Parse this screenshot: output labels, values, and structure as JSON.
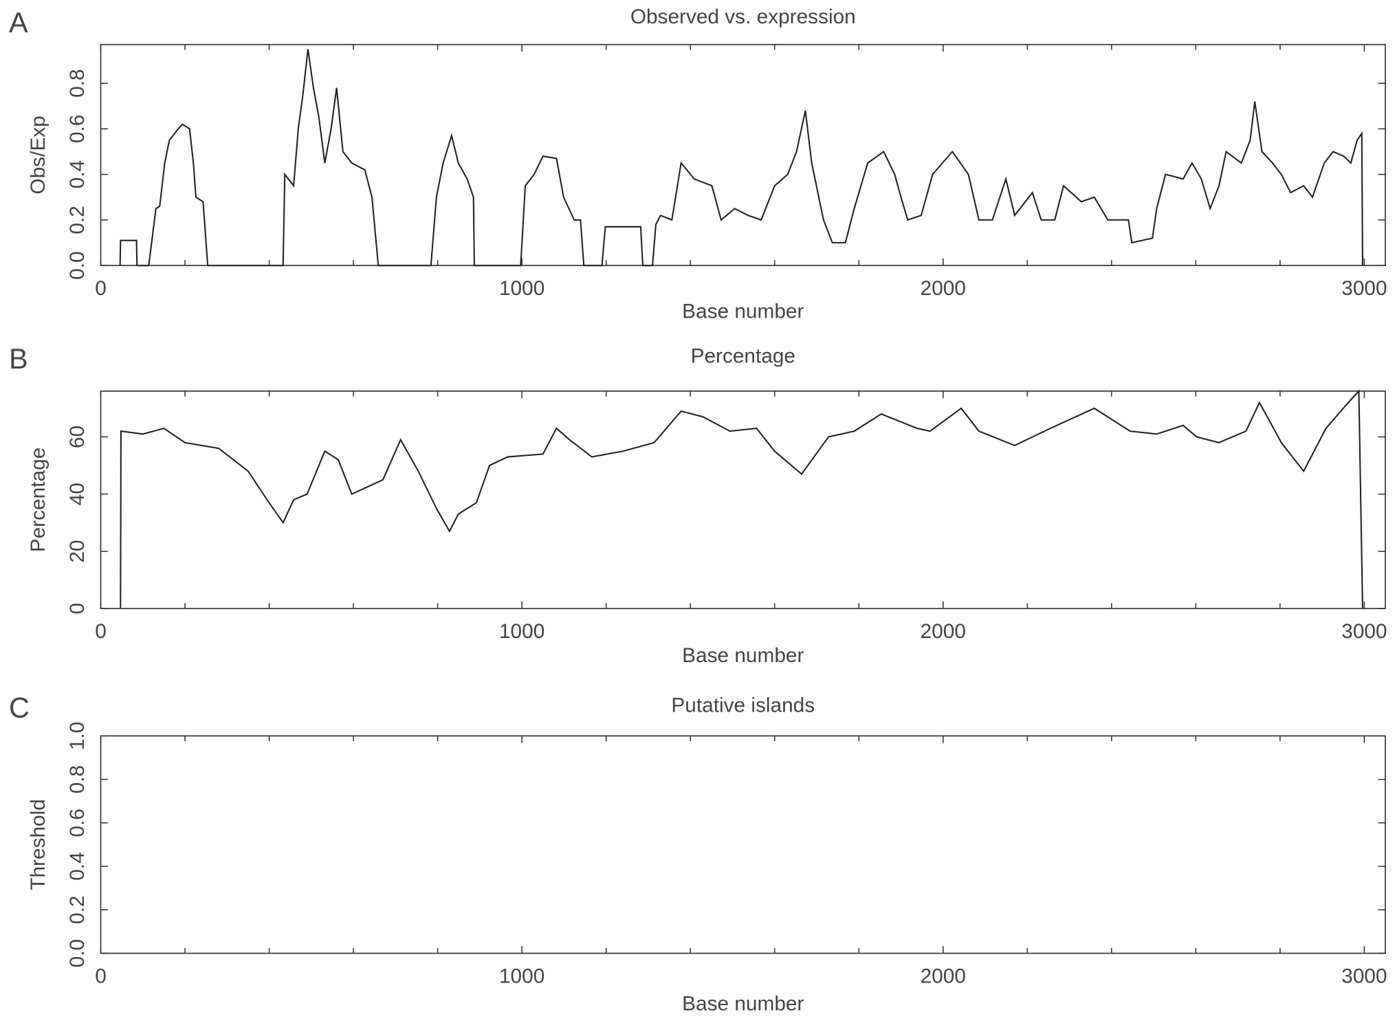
{
  "chart_data": [
    {
      "type": "line",
      "panel": "A",
      "title": "Observed vs. expression",
      "xlabel": "Base number",
      "ylabel": "Obs/Exp",
      "xlim": [
        0,
        3050
      ],
      "xticks": [
        0,
        1000,
        2000,
        3000
      ],
      "xminorticks": [
        200,
        400,
        600,
        800,
        1200,
        1400,
        1600,
        1800,
        2200,
        2400,
        2600,
        2800
      ],
      "ylim": [
        0,
        0.97
      ],
      "yticks": [
        {
          "value": 0,
          "label": "0.0"
        },
        0.2,
        0.4,
        0.6,
        0.8
      ],
      "series": [
        {
          "color": "#222222",
          "x": [
            46,
            47,
            85,
            86,
            114,
            131,
            140,
            152,
            163,
            184,
            194,
            211,
            220,
            226,
            243,
            254,
            433,
            437,
            458,
            469,
            480,
            492,
            505,
            518,
            532,
            547,
            560,
            575,
            596,
            627,
            644,
            659,
            784,
            797,
            813,
            833,
            849,
            870,
            885,
            887,
            997,
            1008,
            1029,
            1050,
            1082,
            1099,
            1124,
            1139,
            1147,
            1190,
            1198,
            1282,
            1287,
            1310,
            1318,
            1329,
            1356,
            1378,
            1409,
            1451,
            1473,
            1505,
            1537,
            1568,
            1600,
            1631,
            1652,
            1673,
            1688,
            1716,
            1737,
            1768,
            1789,
            1821,
            1859,
            1885,
            1900,
            1916,
            1948,
            1975,
            2022,
            2060,
            2085,
            2117,
            2149,
            2170,
            2212,
            2233,
            2265,
            2286,
            2328,
            2359,
            2391,
            2440,
            2448,
            2497,
            2507,
            2528,
            2570,
            2591,
            2613,
            2634,
            2655,
            2672,
            2708,
            2729,
            2740,
            2757,
            2782,
            2803,
            2825,
            2856,
            2877,
            2905,
            2926,
            2951,
            2968,
            2983,
            2994,
            2996
          ],
          "values": [
            0,
            0.11,
            0.11,
            0,
            0,
            0.25,
            0.26,
            0.45,
            0.55,
            0.6,
            0.62,
            0.6,
            0.45,
            0.3,
            0.28,
            0,
            0,
            0.4,
            0.35,
            0.6,
            0.75,
            0.95,
            0.78,
            0.65,
            0.45,
            0.6,
            0.78,
            0.5,
            0.45,
            0.42,
            0.3,
            0,
            0,
            0.3,
            0.45,
            0.57,
            0.45,
            0.38,
            0.3,
            0,
            0,
            0.35,
            0.4,
            0.48,
            0.47,
            0.3,
            0.2,
            0.2,
            0,
            0,
            0.17,
            0.17,
            0,
            0,
            0.18,
            0.22,
            0.2,
            0.45,
            0.38,
            0.35,
            0.2,
            0.25,
            0.22,
            0.2,
            0.35,
            0.4,
            0.5,
            0.68,
            0.45,
            0.2,
            0.1,
            0.1,
            0.25,
            0.45,
            0.5,
            0.4,
            0.3,
            0.2,
            0.22,
            0.4,
            0.5,
            0.4,
            0.2,
            0.2,
            0.38,
            0.22,
            0.32,
            0.2,
            0.2,
            0.35,
            0.28,
            0.3,
            0.2,
            0.2,
            0.1,
            0.12,
            0.25,
            0.4,
            0.38,
            0.45,
            0.38,
            0.25,
            0.35,
            0.5,
            0.45,
            0.55,
            0.72,
            0.5,
            0.45,
            0.4,
            0.32,
            0.35,
            0.3,
            0.45,
            0.5,
            0.48,
            0.45,
            0.55,
            0.58,
            0
          ]
        }
      ]
    },
    {
      "type": "line",
      "panel": "B",
      "title": "Percentage",
      "xlabel": "Base number",
      "ylabel": "Percentage",
      "xlim": [
        0,
        3050
      ],
      "xticks": [
        0,
        1000,
        2000,
        3000
      ],
      "xminorticks": [
        200,
        400,
        600,
        800,
        1200,
        1400,
        1600,
        1800,
        2200,
        2400,
        2600,
        2800
      ],
      "ylim": [
        0,
        76
      ],
      "yticks": [
        0,
        20,
        40,
        60
      ],
      "series": [
        {
          "color": "#222222",
          "x": [
            47,
            48,
            100,
            150,
            200,
            280,
            350,
            395,
            433,
            458,
            490,
            532,
            564,
            596,
            670,
            712,
            754,
            797,
            828,
            849,
            892,
            923,
            966,
            1050,
            1082,
            1113,
            1166,
            1240,
            1314,
            1378,
            1430,
            1494,
            1557,
            1600,
            1664,
            1728,
            1789,
            1853,
            1938,
            1969,
            2043,
            2085,
            2170,
            2255,
            2359,
            2444,
            2507,
            2570,
            2602,
            2655,
            2719,
            2751,
            2803,
            2856,
            2909,
            2962,
            2987,
            2996
          ],
          "values": [
            0,
            62,
            61,
            63,
            58,
            56,
            48,
            38,
            30,
            38,
            40,
            55,
            52,
            40,
            45,
            59,
            48,
            35,
            27,
            33,
            37,
            50,
            53,
            54,
            63,
            59,
            53,
            55,
            58,
            69,
            67,
            62,
            63,
            55,
            47,
            60,
            62,
            68,
            63,
            62,
            70,
            62,
            57,
            63,
            70,
            62,
            61,
            64,
            60,
            58,
            62,
            72,
            58,
            48,
            63,
            72,
            76,
            0
          ]
        }
      ]
    },
    {
      "type": "line",
      "panel": "C",
      "title": "Putative islands",
      "xlabel": "Base number",
      "ylabel": "Threshold",
      "xlim": [
        0,
        3050
      ],
      "xticks": [
        0,
        1000,
        2000,
        3000
      ],
      "xminorticks": [
        200,
        400,
        600,
        800,
        1200,
        1400,
        1600,
        1800,
        2200,
        2400,
        2600,
        2800
      ],
      "ylim": [
        0,
        1
      ],
      "yticks": [
        {
          "value": 0,
          "label": "0.0"
        },
        0.2,
        0.4,
        0.6,
        0.8,
        {
          "value": 1,
          "label": "1.0"
        }
      ],
      "series": []
    }
  ]
}
